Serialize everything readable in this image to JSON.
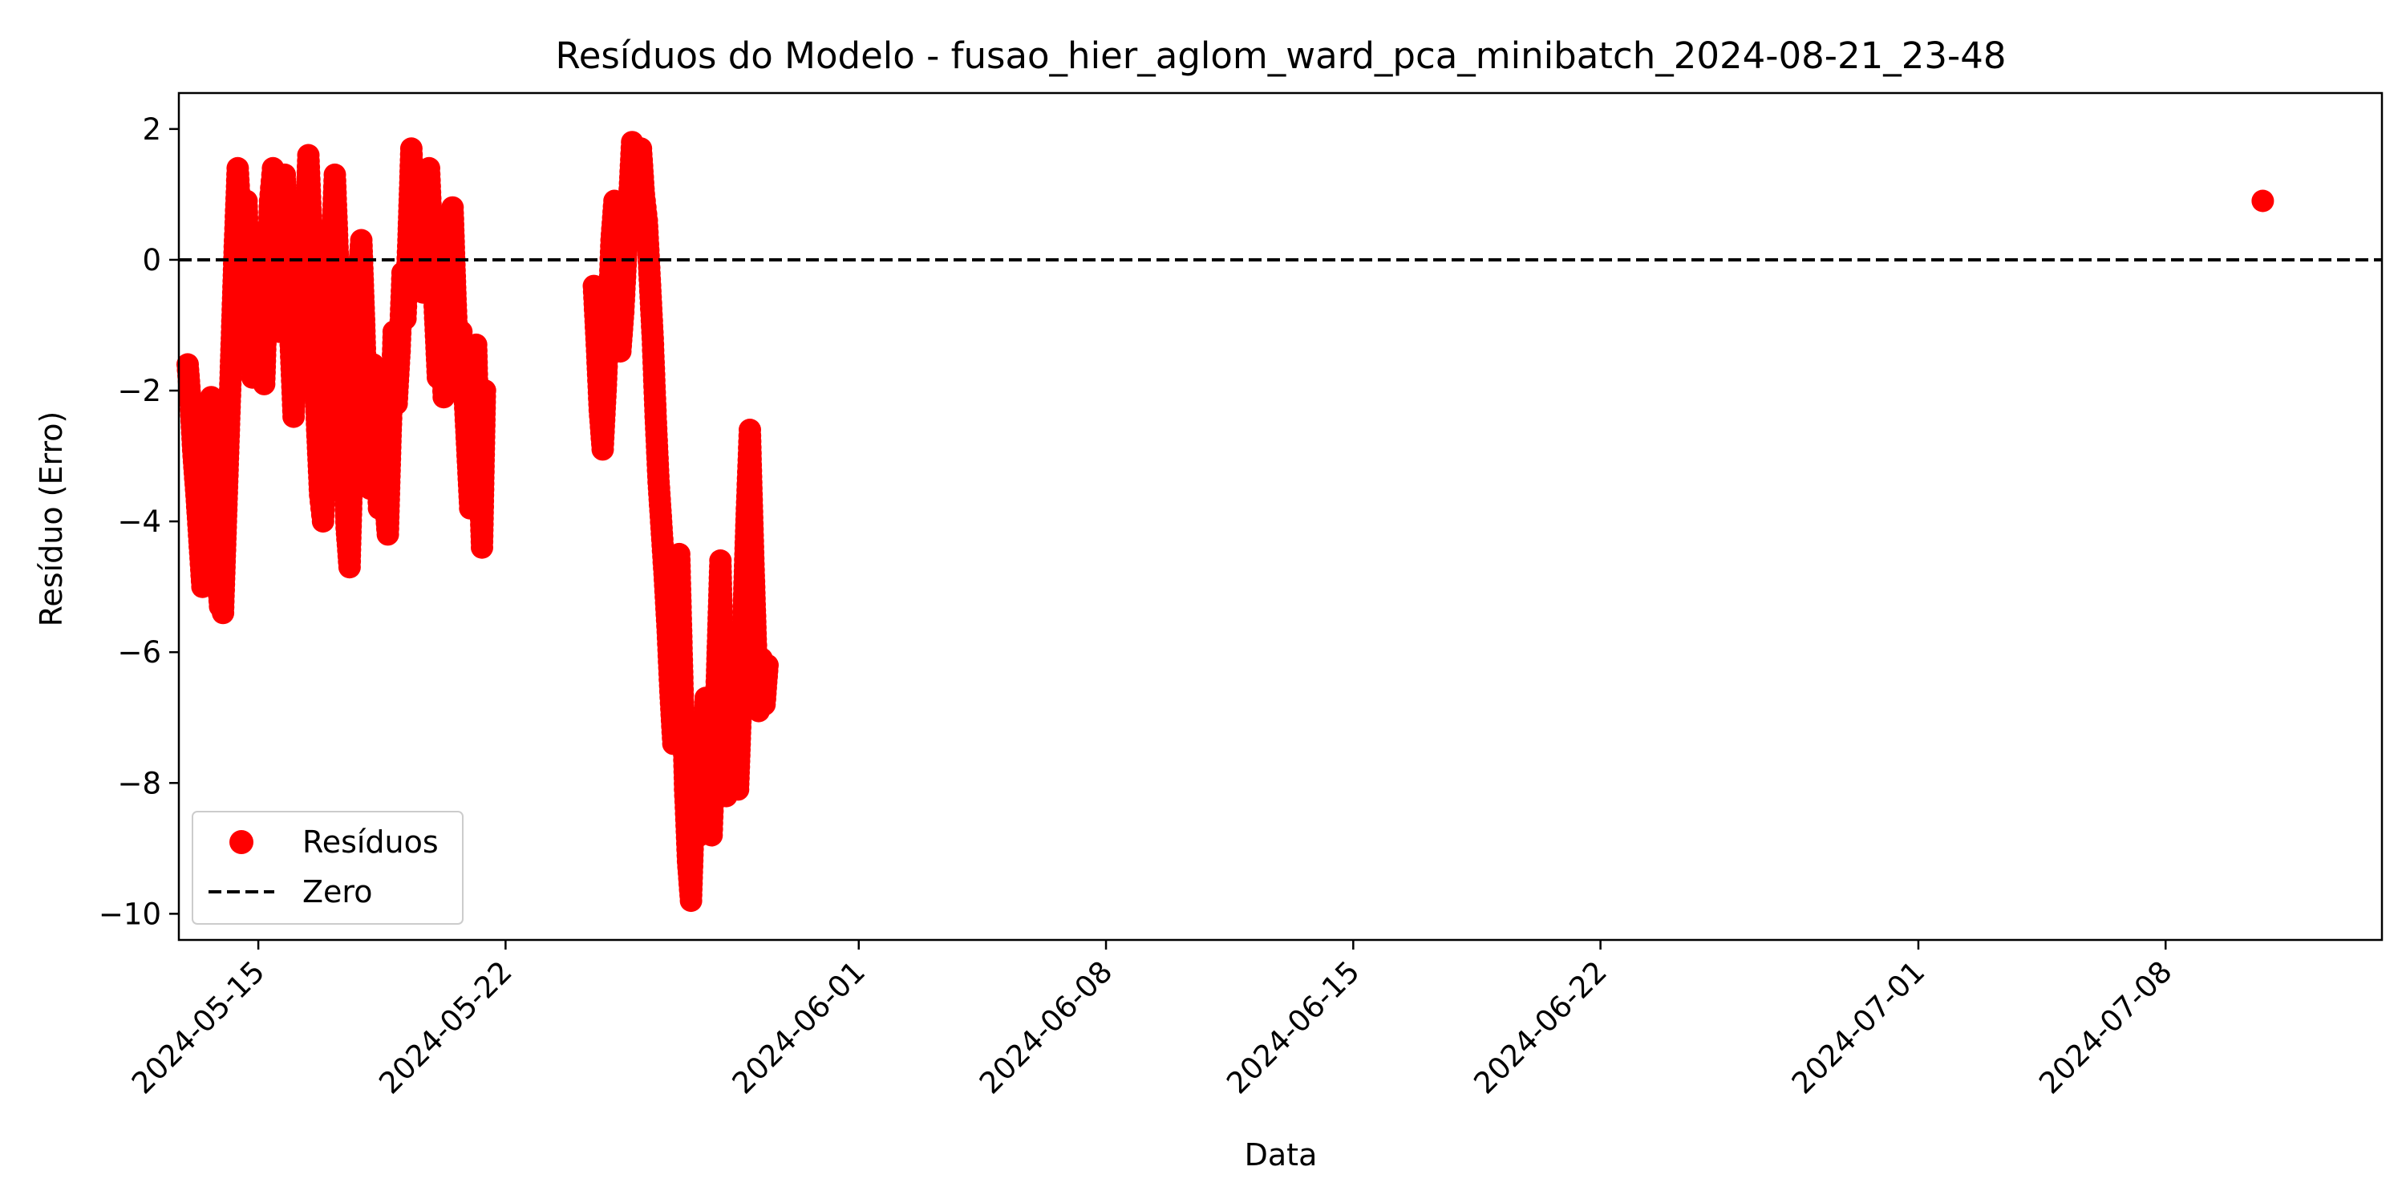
{
  "chart_data": {
    "type": "scatter",
    "title": "Resíduos do Modelo - fusao_hier_aglom_ward_pca_minibatch_2024-08-21_23-48",
    "xlabel": "Data",
    "ylabel": "Resíduo (Erro)",
    "x_type": "date",
    "xlim": [
      "2024-05-12T18:00",
      "2024-07-14T03:00"
    ],
    "ylim": [
      -10.4,
      2.55
    ],
    "x_ticks": [
      {
        "date": "2024-05-15",
        "label": "2024-05-15"
      },
      {
        "date": "2024-05-22",
        "label": "2024-05-22"
      },
      {
        "date": "2024-06-01",
        "label": "2024-06-01"
      },
      {
        "date": "2024-06-08",
        "label": "2024-06-08"
      },
      {
        "date": "2024-06-15",
        "label": "2024-06-15"
      },
      {
        "date": "2024-06-22",
        "label": "2024-06-22"
      },
      {
        "date": "2024-07-01",
        "label": "2024-07-01"
      },
      {
        "date": "2024-07-08",
        "label": "2024-07-08"
      }
    ],
    "y_ticks": [
      {
        "value": 2,
        "label": "2"
      },
      {
        "value": 0,
        "label": "0"
      },
      {
        "value": -2,
        "label": "−2"
      },
      {
        "value": -4,
        "label": "−4"
      },
      {
        "value": -6,
        "label": "−6"
      },
      {
        "value": -8,
        "label": "−8"
      },
      {
        "value": -10,
        "label": "−10"
      }
    ],
    "reference_line": {
      "name": "Zero",
      "y": 0,
      "style": "dashed",
      "color": "#000000"
    },
    "legend": {
      "position": "lower-left",
      "entries": [
        {
          "label": "Resíduos",
          "marker": "circle",
          "color": "#ff0000"
        },
        {
          "label": "Zero",
          "marker": "dashed-line",
          "color": "#000000"
        }
      ]
    },
    "grid": false,
    "series": [
      {
        "name": "Resíduos",
        "color": "#ff0000",
        "points": [
          [
            "2024-05-13T00:00",
            -1.6
          ],
          [
            "2024-05-13T02:00",
            -2.2
          ],
          [
            "2024-05-13T04:00",
            -3.0
          ],
          [
            "2024-05-13T06:00",
            -3.6
          ],
          [
            "2024-05-13T08:00",
            -4.3
          ],
          [
            "2024-05-13T10:00",
            -5.0
          ],
          [
            "2024-05-13T12:00",
            -4.2
          ],
          [
            "2024-05-13T14:00",
            -3.1
          ],
          [
            "2024-05-13T16:00",
            -2.1
          ],
          [
            "2024-05-13T18:00",
            -3.2
          ],
          [
            "2024-05-13T20:00",
            -4.7
          ],
          [
            "2024-05-13T22:00",
            -5.3
          ],
          [
            "2024-05-14T00:00",
            -5.4
          ],
          [
            "2024-05-14T02:00",
            -4.0
          ],
          [
            "2024-05-14T04:00",
            -2.6
          ],
          [
            "2024-05-14T06:00",
            -1.2
          ],
          [
            "2024-05-14T08:00",
            0.2
          ],
          [
            "2024-05-14T10:00",
            1.4
          ],
          [
            "2024-05-14T12:00",
            0.6
          ],
          [
            "2024-05-14T14:00",
            -0.8
          ],
          [
            "2024-05-14T16:00",
            0.9
          ],
          [
            "2024-05-14T18:00",
            -0.5
          ],
          [
            "2024-05-14T20:00",
            -1.8
          ],
          [
            "2024-05-14T22:00",
            -0.6
          ],
          [
            "2024-05-15T00:00",
            0.4
          ],
          [
            "2024-05-15T02:00",
            -0.9
          ],
          [
            "2024-05-15T04:00",
            -1.9
          ],
          [
            "2024-05-15T06:00",
            -0.4
          ],
          [
            "2024-05-15T08:00",
            0.9
          ],
          [
            "2024-05-15T10:00",
            1.4
          ],
          [
            "2024-05-15T12:00",
            0.3
          ],
          [
            "2024-05-15T14:00",
            -1.1
          ],
          [
            "2024-05-15T16:00",
            0.2
          ],
          [
            "2024-05-15T18:00",
            1.3
          ],
          [
            "2024-05-15T20:00",
            0.1
          ],
          [
            "2024-05-15T22:00",
            -1.3
          ],
          [
            "2024-05-16T00:00",
            -2.4
          ],
          [
            "2024-05-16T02:00",
            -1.2
          ],
          [
            "2024-05-16T04:00",
            0.1
          ],
          [
            "2024-05-16T06:00",
            -1.5
          ],
          [
            "2024-05-16T08:00",
            0.2
          ],
          [
            "2024-05-16T10:00",
            1.6
          ],
          [
            "2024-05-16T12:00",
            0.5
          ],
          [
            "2024-05-16T14:00",
            -1.2
          ],
          [
            "2024-05-16T16:00",
            -2.6
          ],
          [
            "2024-05-16T18:00",
            -3.6
          ],
          [
            "2024-05-16T20:00",
            -4.0
          ],
          [
            "2024-05-16T22:00",
            -2.7
          ],
          [
            "2024-05-17T00:00",
            -1.3
          ],
          [
            "2024-05-17T02:00",
            0.2
          ],
          [
            "2024-05-17T04:00",
            1.3
          ],
          [
            "2024-05-17T06:00",
            0.1
          ],
          [
            "2024-05-17T08:00",
            -1.6
          ],
          [
            "2024-05-17T10:00",
            -2.9
          ],
          [
            "2024-05-17T12:00",
            -4.1
          ],
          [
            "2024-05-17T14:00",
            -4.7
          ],
          [
            "2024-05-17T16:00",
            -3.0
          ],
          [
            "2024-05-17T18:00",
            -1.4
          ],
          [
            "2024-05-17T20:00",
            -0.3
          ],
          [
            "2024-05-17T22:00",
            0.3
          ],
          [
            "2024-05-18T00:00",
            -1.0
          ],
          [
            "2024-05-18T02:00",
            -2.6
          ],
          [
            "2024-05-18T04:00",
            -3.5
          ],
          [
            "2024-05-18T06:00",
            -1.6
          ],
          [
            "2024-05-18T08:00",
            -2.7
          ],
          [
            "2024-05-18T10:00",
            -3.8
          ],
          [
            "2024-05-18T12:00",
            -2.2
          ],
          [
            "2024-05-18T14:00",
            -3.6
          ],
          [
            "2024-05-18T16:00",
            -4.2
          ],
          [
            "2024-05-18T18:00",
            -2.6
          ],
          [
            "2024-05-18T20:00",
            -1.1
          ],
          [
            "2024-05-18T22:00",
            -2.2
          ],
          [
            "2024-05-19T00:00",
            -1.4
          ],
          [
            "2024-05-19T02:00",
            -0.2
          ],
          [
            "2024-05-19T04:00",
            -0.9
          ],
          [
            "2024-05-19T06:00",
            0.3
          ],
          [
            "2024-05-19T08:00",
            1.7
          ],
          [
            "2024-05-19T10:00",
            0.6
          ],
          [
            "2024-05-19T12:00",
            -0.4
          ],
          [
            "2024-05-19T14:00",
            0.8
          ],
          [
            "2024-05-19T16:00",
            -0.5
          ],
          [
            "2024-05-19T18:00",
            0.5
          ],
          [
            "2024-05-19T20:00",
            1.4
          ],
          [
            "2024-05-19T22:00",
            0.3
          ],
          [
            "2024-05-20T00:00",
            -0.8
          ],
          [
            "2024-05-20T02:00",
            -1.8
          ],
          [
            "2024-05-20T04:00",
            -0.9
          ],
          [
            "2024-05-20T06:00",
            -2.1
          ],
          [
            "2024-05-20T08:00",
            -1.0
          ],
          [
            "2024-05-20T10:00",
            0.1
          ],
          [
            "2024-05-20T12:00",
            0.8
          ],
          [
            "2024-05-20T14:00",
            -0.6
          ],
          [
            "2024-05-20T16:00",
            -1.7
          ],
          [
            "2024-05-20T18:00",
            -1.1
          ],
          [
            "2024-05-20T20:00",
            -2.0
          ],
          [
            "2024-05-21T00:00",
            -3.8
          ],
          [
            "2024-05-21T02:00",
            -2.6
          ],
          [
            "2024-05-21T04:00",
            -1.3
          ],
          [
            "2024-05-21T06:00",
            -3.0
          ],
          [
            "2024-05-21T08:00",
            -4.4
          ],
          [
            "2024-05-21T10:00",
            -2.0
          ],
          [
            "2024-05-24T12:00",
            -0.4
          ],
          [
            "2024-05-24T14:00",
            -1.3
          ],
          [
            "2024-05-24T16:00",
            -2.3
          ],
          [
            "2024-05-24T18:00",
            -2.9
          ],
          [
            "2024-05-24T20:00",
            -2.0
          ],
          [
            "2024-05-24T22:00",
            -0.9
          ],
          [
            "2024-05-25T00:00",
            0.3
          ],
          [
            "2024-05-25T02:00",
            0.9
          ],
          [
            "2024-05-25T04:00",
            -0.4
          ],
          [
            "2024-05-25T06:00",
            -1.4
          ],
          [
            "2024-05-25T08:00",
            -0.8
          ],
          [
            "2024-05-25T10:00",
            0.1
          ],
          [
            "2024-05-25T12:00",
            0.9
          ],
          [
            "2024-05-25T14:00",
            1.8
          ],
          [
            "2024-05-25T16:00",
            1.2
          ],
          [
            "2024-05-25T18:00",
            0.8
          ],
          [
            "2024-05-25T20:00",
            1.7
          ],
          [
            "2024-05-25T22:00",
            1.0
          ],
          [
            "2024-05-26T00:00",
            0.6
          ],
          [
            "2024-05-26T02:00",
            -0.3
          ],
          [
            "2024-05-26T04:00",
            -1.2
          ],
          [
            "2024-05-26T06:00",
            -2.4
          ],
          [
            "2024-05-26T08:00",
            -3.4
          ],
          [
            "2024-05-26T10:00",
            -4.1
          ],
          [
            "2024-05-26T12:00",
            -4.8
          ],
          [
            "2024-05-26T14:00",
            -5.6
          ],
          [
            "2024-05-26T16:00",
            -6.6
          ],
          [
            "2024-05-26T18:00",
            -7.4
          ],
          [
            "2024-05-26T20:00",
            -5.6
          ],
          [
            "2024-05-26T22:00",
            -4.5
          ],
          [
            "2024-05-27T00:00",
            -6.3
          ],
          [
            "2024-05-27T02:00",
            -8.1
          ],
          [
            "2024-05-27T04:00",
            -9.2
          ],
          [
            "2024-05-27T06:00",
            -9.8
          ],
          [
            "2024-05-27T08:00",
            -8.4
          ],
          [
            "2024-05-27T10:00",
            -7.1
          ],
          [
            "2024-05-27T12:00",
            -8.8
          ],
          [
            "2024-05-27T14:00",
            -7.5
          ],
          [
            "2024-05-27T16:00",
            -6.7
          ],
          [
            "2024-05-27T18:00",
            -8.0
          ],
          [
            "2024-05-27T20:00",
            -8.8
          ],
          [
            "2024-05-27T22:00",
            -7.6
          ],
          [
            "2024-05-28T00:00",
            -6.1
          ],
          [
            "2024-05-28T02:00",
            -4.6
          ],
          [
            "2024-05-28T04:00",
            -6.8
          ],
          [
            "2024-05-28T06:00",
            -8.2
          ],
          [
            "2024-05-28T08:00",
            -7.2
          ],
          [
            "2024-05-28T10:00",
            -6.3
          ],
          [
            "2024-05-28T12:00",
            -7.7
          ],
          [
            "2024-05-28T14:00",
            -8.1
          ],
          [
            "2024-05-28T16:00",
            -6.8
          ],
          [
            "2024-05-28T18:00",
            -5.2
          ],
          [
            "2024-05-28T20:00",
            -3.8
          ],
          [
            "2024-05-28T22:00",
            -2.6
          ],
          [
            "2024-05-29T00:00",
            -4.3
          ],
          [
            "2024-05-29T02:00",
            -5.8
          ],
          [
            "2024-05-29T04:00",
            -6.9
          ],
          [
            "2024-05-29T06:00",
            -6.1
          ],
          [
            "2024-05-29T08:00",
            -6.8
          ],
          [
            "2024-05-29T10:00",
            -6.2
          ],
          [
            "2024-07-10T18:00",
            0.9
          ]
        ]
      }
    ]
  }
}
